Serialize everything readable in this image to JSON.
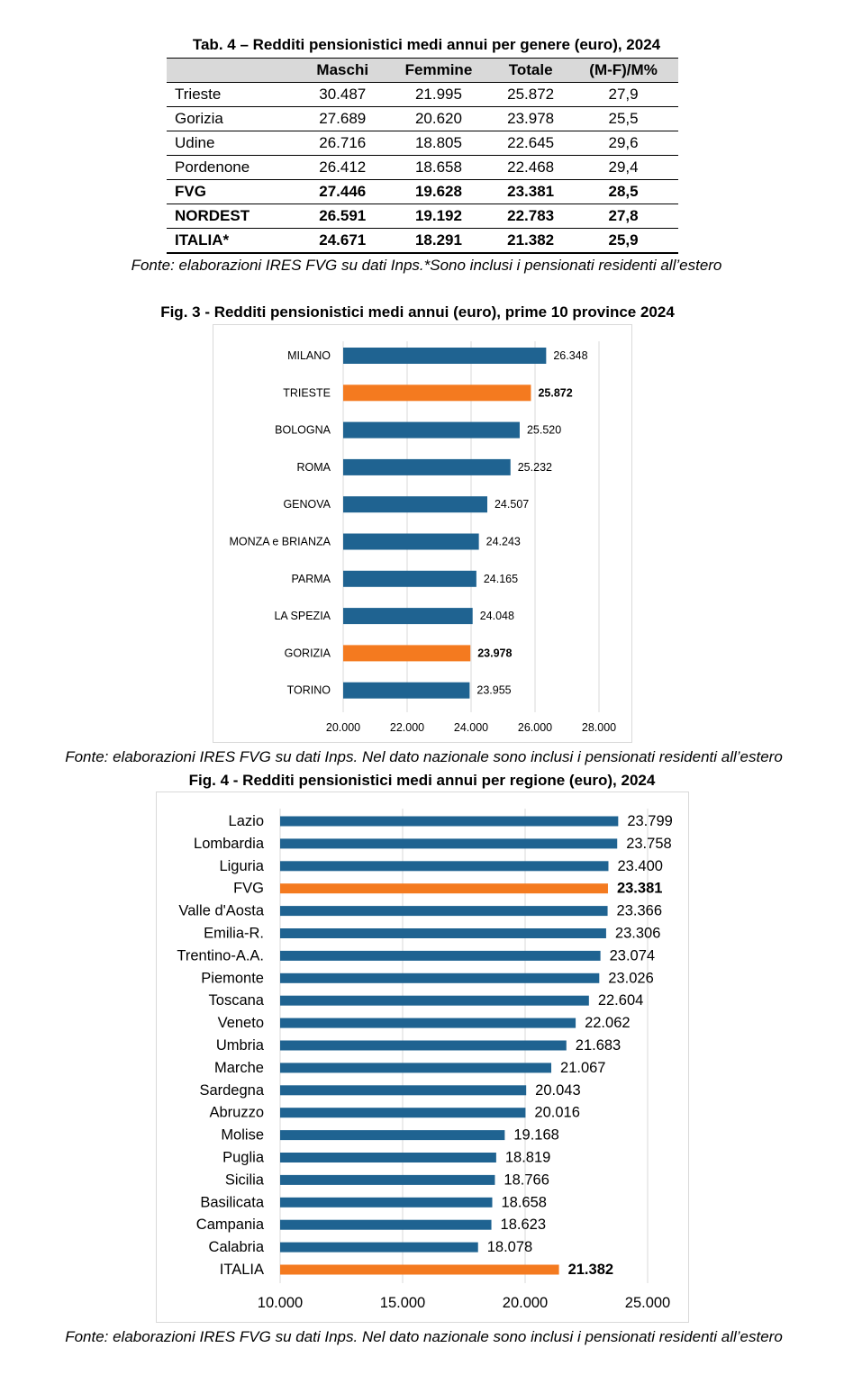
{
  "table": {
    "title": "Tab. 4 – Redditi pensionistici medi annui per genere (euro), 2024",
    "headers": [
      "",
      "Maschi",
      "Femmine",
      "Totale",
      "(M-F)/M%"
    ],
    "rows": [
      {
        "name": "Trieste",
        "maschi": "30.487",
        "femmine": "21.995",
        "totale": "25.872",
        "diff": "27,9",
        "bold": false
      },
      {
        "name": "Gorizia",
        "maschi": "27.689",
        "femmine": "20.620",
        "totale": "23.978",
        "diff": "25,5",
        "bold": false
      },
      {
        "name": "Udine",
        "maschi": "26.716",
        "femmine": "18.805",
        "totale": "22.645",
        "diff": "29,6",
        "bold": false
      },
      {
        "name": "Pordenone",
        "maschi": "26.412",
        "femmine": "18.658",
        "totale": "22.468",
        "diff": "29,4",
        "bold": false
      },
      {
        "name": "FVG",
        "maschi": "27.446",
        "femmine": "19.628",
        "totale": "23.381",
        "diff": "28,5",
        "bold": true
      },
      {
        "name": "NORDEST",
        "maschi": "26.591",
        "femmine": "19.192",
        "totale": "22.783",
        "diff": "27,8",
        "bold": true
      },
      {
        "name": "ITALIA*",
        "maschi": "24.671",
        "femmine": "18.291",
        "totale": "21.382",
        "diff": "25,9",
        "bold": true
      }
    ],
    "source": "Fonte: elaborazioni IRES FVG su dati Inps.*Sono inclusi i pensionati residenti all’estero"
  },
  "chart_data": [
    {
      "type": "bar",
      "orientation": "horizontal",
      "title": "Fig. 3 - Redditi pensionistici medi annui (euro), prime 10 province 2024",
      "categories": [
        "MILANO",
        "TRIESTE",
        "BOLOGNA",
        "ROMA",
        "GENOVA",
        "MONZA e BRIANZA",
        "PARMA",
        "LA SPEZIA",
        "GORIZIA",
        "TORINO"
      ],
      "values": [
        26348,
        25872,
        25520,
        25232,
        24507,
        24243,
        24165,
        24048,
        23978,
        23955
      ],
      "value_labels": [
        "26.348",
        "25.872",
        "25.520",
        "25.232",
        "24.507",
        "24.243",
        "24.165",
        "24.048",
        "23.978",
        "23.955"
      ],
      "highlight": [
        "TRIESTE",
        "GORIZIA"
      ],
      "xlim": [
        20000,
        28000
      ],
      "xticks": [
        20000,
        22000,
        24000,
        26000,
        28000
      ],
      "xtick_labels": [
        "20.000",
        "22.000",
        "24.000",
        "26.000",
        "28.000"
      ],
      "grid": true,
      "colors": {
        "default": "#1f6391",
        "highlight": "#f47a1f",
        "grid": "#d9d9d9"
      },
      "source": "Fonte: elaborazioni IRES FVG su dati Inps. Nel dato nazionale sono inclusi i pensionati residenti all’estero"
    },
    {
      "type": "bar",
      "orientation": "horizontal",
      "title": "Fig. 4 - Redditi pensionistici medi annui per regione (euro), 2024",
      "categories": [
        "Lazio",
        "Lombardia",
        "Liguria",
        "FVG",
        "Valle d'Aosta",
        "Emilia-R.",
        "Trentino-A.A.",
        "Piemonte",
        "Toscana",
        "Veneto",
        "Umbria",
        "Marche",
        "Sardegna",
        "Abruzzo",
        "Molise",
        "Puglia",
        "Sicilia",
        "Basilicata",
        "Campania",
        "Calabria",
        "ITALIA"
      ],
      "values": [
        23799,
        23758,
        23400,
        23381,
        23366,
        23306,
        23074,
        23026,
        22604,
        22062,
        21683,
        21067,
        20043,
        20016,
        19168,
        18819,
        18766,
        18658,
        18623,
        18078,
        21382
      ],
      "value_labels": [
        "23.799",
        "23.758",
        "23.400",
        "23.381",
        "23.366",
        "23.306",
        "23.074",
        "23.026",
        "22.604",
        "22.062",
        "21.683",
        "21.067",
        "20.043",
        "20.016",
        "19.168",
        "18.819",
        "18.766",
        "18.658",
        "18.623",
        "18.078",
        "21.382"
      ],
      "highlight": [
        "FVG",
        "ITALIA"
      ],
      "xlim": [
        10000,
        25000
      ],
      "xticks": [
        10000,
        15000,
        20000,
        25000
      ],
      "xtick_labels": [
        "10.000",
        "15.000",
        "20.000",
        "25.000"
      ],
      "grid": true,
      "colors": {
        "default": "#1f6391",
        "highlight": "#f47a1f",
        "grid": "#d9d9d9"
      },
      "source": "Fonte: elaborazioni IRES FVG su dati Inps. Nel dato nazionale sono inclusi i pensionati residenti all’estero"
    }
  ]
}
